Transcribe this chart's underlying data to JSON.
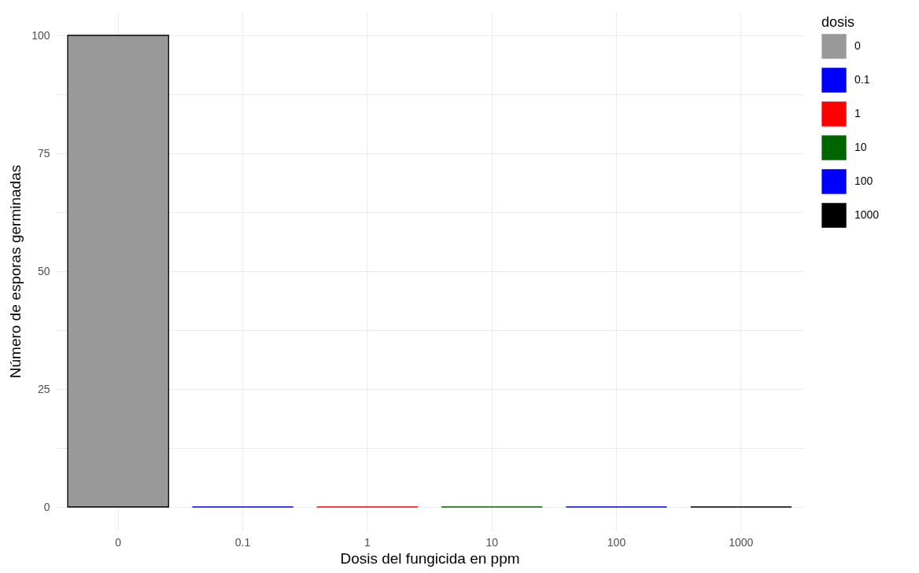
{
  "chart_data": {
    "type": "bar",
    "xlabel": "Dosis del fungicida en ppm",
    "ylabel": "Número de esporas germinadas",
    "legend_title": "dosis",
    "categories": [
      "0",
      "0.1",
      "1",
      "10",
      "100",
      "1000"
    ],
    "series": [
      {
        "name": "0",
        "color": "#999999",
        "values": [
          100,
          null,
          null,
          null,
          null,
          null
        ]
      },
      {
        "name": "0.1",
        "color": "#0000ff",
        "values": [
          null,
          0,
          null,
          null,
          null,
          null
        ]
      },
      {
        "name": "1",
        "color": "#ff0000",
        "values": [
          null,
          null,
          0,
          null,
          null,
          null
        ]
      },
      {
        "name": "10",
        "color": "#006400",
        "values": [
          null,
          null,
          null,
          0,
          null,
          null
        ]
      },
      {
        "name": "100",
        "color": "#0000ff",
        "values": [
          null,
          null,
          null,
          null,
          0,
          null
        ]
      },
      {
        "name": "1000",
        "color": "#000000",
        "values": [
          null,
          null,
          null,
          null,
          null,
          0
        ]
      }
    ],
    "ylim": [
      -5,
      105
    ],
    "yticks": [
      0,
      {
        "value": 12.5,
        "label": null
      },
      25,
      {
        "value": 37.5,
        "label": null
      },
      50,
      {
        "value": 62.5,
        "label": null
      },
      75,
      {
        "value": 87.5,
        "label": null
      },
      100
    ],
    "grid": true,
    "legend": "right"
  }
}
